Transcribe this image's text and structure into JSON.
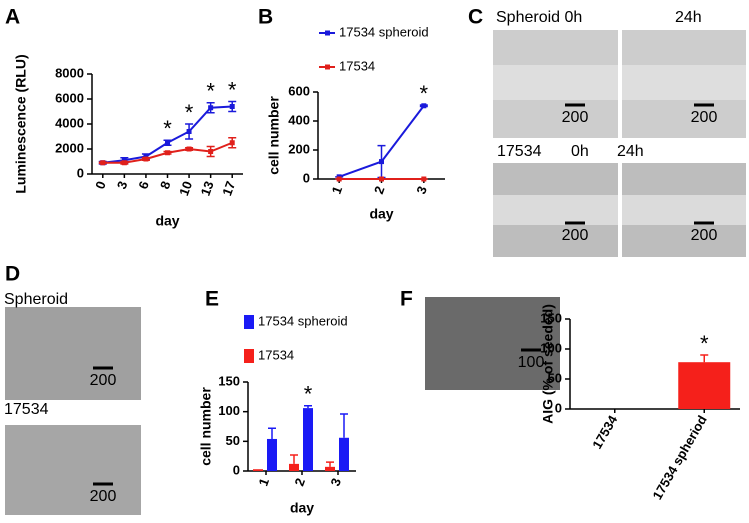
{
  "panel_labels": [
    "A",
    "B",
    "C",
    "D",
    "E",
    "F"
  ],
  "image_labels": [
    "Spheroid 0h",
    "24h",
    "17534",
    "0h",
    "24h",
    "Spheroid",
    "17534"
  ],
  "scale_bars": [
    "200",
    "200",
    "200",
    "200",
    "200",
    "200",
    "100"
  ],
  "chart_data": [
    {
      "type": "line",
      "y_label": "Luminescence (RLU)",
      "x_label": "day",
      "categories": [
        "0",
        "3",
        "6",
        "8",
        "10",
        "13",
        "17"
      ],
      "series": [
        {
          "color": "#1a1adb",
          "values": [
            900,
            1100,
            1400,
            2500,
            3400,
            5300,
            5400
          ],
          "errors": [
            100,
            200,
            200,
            200,
            600,
            400,
            400
          ]
        },
        {
          "color": "#e0201b",
          "values": [
            900,
            900,
            1200,
            1700,
            2000,
            1800,
            2500
          ],
          "errors": [
            50,
            100,
            100,
            100,
            100,
            400,
            400
          ]
        }
      ],
      "ylim": [
        0,
        8000
      ],
      "yticks": [
        0,
        2000,
        4000,
        6000,
        8000
      ],
      "annotations": [
        {
          "text": "*",
          "category": "8"
        },
        {
          "text": "*",
          "category": "10"
        },
        {
          "text": "*",
          "category": "13"
        },
        {
          "text": "*",
          "category": "17"
        }
      ]
    },
    {
      "type": "line",
      "y_label": "cell number",
      "x_label": "day",
      "legend": "top",
      "categories": [
        "1",
        "2",
        "3"
      ],
      "series": [
        {
          "name": "17534 spheroid",
          "color": "#1a1adb",
          "values": [
            15,
            120,
            505
          ],
          "errors": [
            0,
            110,
            5
          ]
        },
        {
          "name": "17534",
          "color": "#e0201b",
          "values": [
            0,
            0,
            0
          ],
          "errors": [
            0,
            0,
            0
          ]
        }
      ],
      "ylim": [
        0,
        600
      ],
      "yticks": [
        0,
        200,
        400,
        600
      ],
      "annotations": [
        {
          "text": "*",
          "category": "3"
        }
      ]
    },
    {
      "type": "bar",
      "y_label": "cell number",
      "x_label": "day",
      "legend": "top",
      "categories": [
        "1",
        "2",
        "3"
      ],
      "series": [
        {
          "name": "17534 spheroid",
          "color": "#1a1af5",
          "values": [
            54,
            106,
            56
          ],
          "errors": [
            18,
            4,
            40
          ]
        },
        {
          "name": "17534",
          "color": "#f5201b",
          "values": [
            3,
            12,
            7
          ],
          "errors": [
            0,
            15,
            8
          ]
        }
      ],
      "ylim": [
        0,
        150
      ],
      "yticks": [
        0,
        50,
        100,
        150
      ],
      "annotations": [
        {
          "text": "*",
          "category": "2"
        }
      ]
    },
    {
      "type": "bar",
      "y_label": "AIG (% of seeded)",
      "categories": [
        "17534",
        "17534 spheriod"
      ],
      "series": [
        {
          "color": "#f5201b",
          "values": [
            0,
            78
          ],
          "errors": [
            0,
            12
          ]
        }
      ],
      "ylim": [
        0,
        150
      ],
      "yticks": [
        0,
        50,
        100,
        150
      ],
      "annotations": [
        {
          "text": "*",
          "category": "17534 spheriod"
        }
      ]
    }
  ]
}
